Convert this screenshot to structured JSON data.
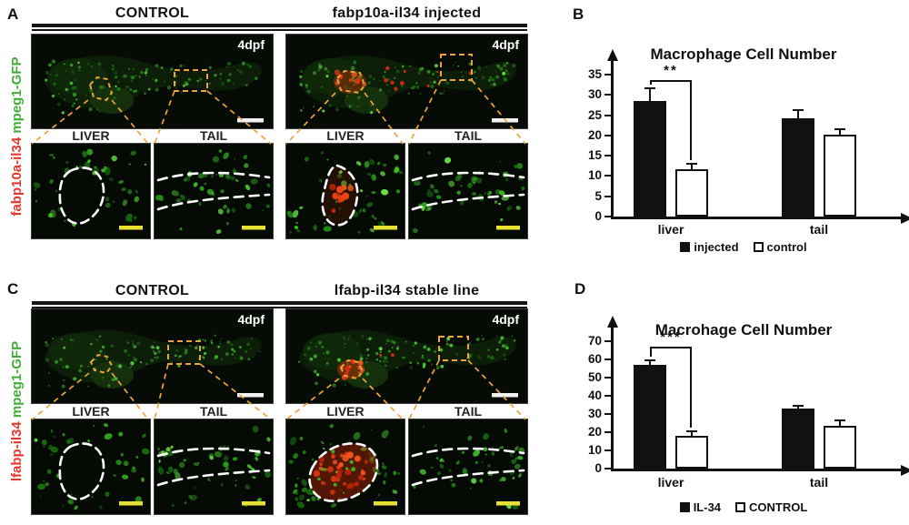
{
  "figure_type": "scientific-figure",
  "colors": {
    "gfp_green": "#3fae36",
    "label_red": "#e8352b",
    "roi_orange": "#eca53a",
    "scalebar_yellow": "#e8e132",
    "scalebar_white": "#f2f2f2",
    "outline_white": "#ffffff",
    "bar_black": "#111111"
  },
  "panel_a": {
    "letter": "A",
    "column_headers": [
      "CONTROL",
      "fabp10a-il34 injected"
    ],
    "row_label_green": "mpeg1-GFP",
    "row_label_red": "fabp10a-il34",
    "timepoint": "4dpf",
    "inset_labels": [
      "LIVER",
      "TAIL"
    ]
  },
  "panel_b": {
    "letter": "B"
  },
  "panel_c": {
    "letter": "C",
    "column_headers": [
      "CONTROL",
      "lfabp-il34 stable line"
    ],
    "row_label_green": "mpeg1-GFP",
    "row_label_red": "lfabp-il34",
    "timepoint": "4dpf",
    "inset_labels": [
      "LIVER",
      "TAIL"
    ]
  },
  "panel_d": {
    "letter": "D"
  },
  "chart_data": [
    {
      "id": "B",
      "type": "bar",
      "title": "Macrophage Cell Number",
      "categories": [
        "liver",
        "tail"
      ],
      "series": [
        {
          "name": "injected",
          "fill": "#111111",
          "values": [
            28.5,
            24.3
          ],
          "errors": [
            3.2,
            1.9
          ]
        },
        {
          "name": "control",
          "fill": "#ffffff",
          "values": [
            11.7,
            20.3
          ],
          "errors": [
            1.3,
            1.2
          ]
        }
      ],
      "ylim": [
        0,
        35
      ],
      "yticks": [
        0,
        5,
        10,
        15,
        20,
        25,
        30,
        35
      ],
      "significance": {
        "label": "**",
        "category": "liver"
      },
      "legend_position": "bottom",
      "axis_arrows": true,
      "grid": false
    },
    {
      "id": "D",
      "type": "bar",
      "title": "Macrohage Cell Number",
      "categories": [
        "liver",
        "tail"
      ],
      "series": [
        {
          "name": "IL-34",
          "fill": "#111111",
          "values": [
            57,
            33
          ],
          "errors": [
            2.5,
            1.5
          ]
        },
        {
          "name": "CONTROL",
          "fill": "#ffffff",
          "values": [
            18,
            23.5
          ],
          "errors": [
            2.5,
            3.0
          ]
        }
      ],
      "ylim": [
        0,
        70
      ],
      "yticks": [
        0,
        10,
        20,
        30,
        40,
        50,
        60,
        70
      ],
      "significance": {
        "label": "***",
        "category": "liver"
      },
      "legend_position": "bottom",
      "axis_arrows": true,
      "grid": false
    }
  ]
}
